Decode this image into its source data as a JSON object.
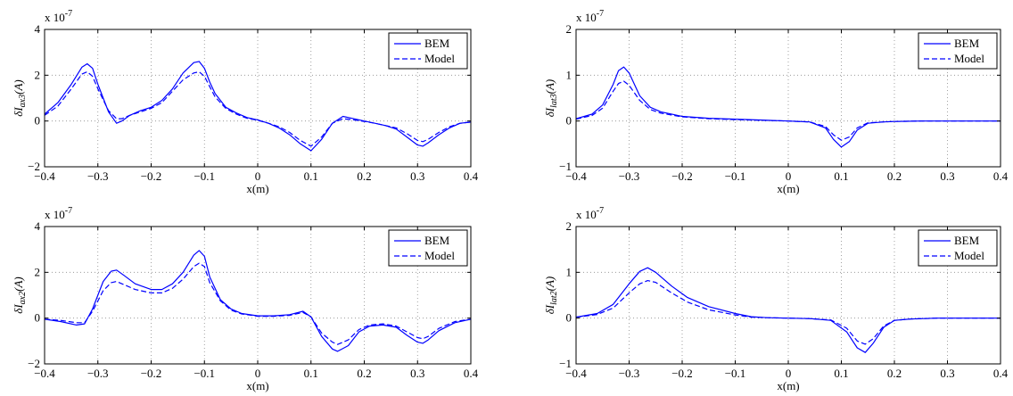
{
  "chart_data": [
    {
      "type": "line",
      "xlabel": "x(m)",
      "ylabel": "δI_{ax3}(A)",
      "ylabel_main": "δI",
      "ylabel_sub": "ax3",
      "ylabel_unit": "(A)",
      "scale_label": "x 10",
      "scale_exponent": "-7",
      "xlim": [
        -0.4,
        0.4
      ],
      "ylim": [
        -2,
        4
      ],
      "xticks": [
        -0.4,
        -0.3,
        -0.2,
        -0.1,
        0,
        0.1,
        0.2,
        0.3,
        0.4
      ],
      "xtick_labels": [
        "−0.4",
        "−0.3",
        "−0.2",
        "−0.1",
        "0",
        "0.1",
        "0.2",
        "0.3",
        "0.4"
      ],
      "yticks": [
        -2,
        0,
        2,
        4
      ],
      "ytick_labels": [
        "−2",
        "0",
        "2",
        "4"
      ],
      "grid": true,
      "legend_position": "top-right",
      "x": [
        -0.4,
        -0.375,
        -0.35,
        -0.33,
        -0.32,
        -0.31,
        -0.3,
        -0.28,
        -0.265,
        -0.255,
        -0.24,
        -0.22,
        -0.2,
        -0.18,
        -0.16,
        -0.14,
        -0.12,
        -0.11,
        -0.1,
        -0.09,
        -0.08,
        -0.06,
        -0.04,
        -0.02,
        0,
        0.02,
        0.04,
        0.06,
        0.08,
        0.1,
        0.12,
        0.14,
        0.16,
        0.18,
        0.2,
        0.22,
        0.24,
        0.26,
        0.28,
        0.3,
        0.31,
        0.32,
        0.34,
        0.36,
        0.38,
        0.4
      ],
      "series": [
        {
          "name": "BEM",
          "style": "solid",
          "values": [
            0.3,
            0.8,
            1.6,
            2.35,
            2.5,
            2.3,
            1.6,
            0.4,
            -0.1,
            0.0,
            0.25,
            0.45,
            0.6,
            0.9,
            1.4,
            2.1,
            2.55,
            2.6,
            2.3,
            1.7,
            1.2,
            0.6,
            0.35,
            0.15,
            0.05,
            -0.1,
            -0.3,
            -0.6,
            -1.0,
            -1.3,
            -0.8,
            -0.1,
            0.2,
            0.1,
            0.0,
            -0.1,
            -0.2,
            -0.35,
            -0.7,
            -1.05,
            -1.1,
            -0.95,
            -0.6,
            -0.3,
            -0.1,
            -0.05
          ]
        },
        {
          "name": "Model",
          "style": "dashed",
          "values": [
            0.25,
            0.65,
            1.4,
            2.05,
            2.15,
            1.95,
            1.4,
            0.45,
            0.1,
            0.1,
            0.25,
            0.4,
            0.55,
            0.8,
            1.3,
            1.8,
            2.1,
            2.15,
            1.95,
            1.5,
            1.05,
            0.55,
            0.3,
            0.12,
            0.03,
            -0.1,
            -0.25,
            -0.5,
            -0.85,
            -1.1,
            -0.7,
            -0.1,
            0.1,
            0.05,
            -0.02,
            -0.1,
            -0.2,
            -0.3,
            -0.55,
            -0.85,
            -0.9,
            -0.8,
            -0.5,
            -0.25,
            -0.1,
            -0.05
          ]
        }
      ]
    },
    {
      "type": "line",
      "xlabel": "x(m)",
      "ylabel": "δI_{lat3}(A)",
      "ylabel_main": "δI",
      "ylabel_sub": "lat3",
      "ylabel_unit": "(A)",
      "scale_label": "x 10",
      "scale_exponent": "-7",
      "xlim": [
        -0.4,
        0.4
      ],
      "ylim": [
        -1,
        2
      ],
      "xticks": [
        -0.4,
        -0.3,
        -0.2,
        -0.1,
        0,
        0.1,
        0.2,
        0.3,
        0.4
      ],
      "xtick_labels": [
        "−0.4",
        "−0.3",
        "−0.2",
        "−0.1",
        "0",
        "0.1",
        "0.2",
        "0.3",
        "0.4"
      ],
      "yticks": [
        -1,
        0,
        1,
        2
      ],
      "ytick_labels": [
        "−1",
        "0",
        "1",
        "2"
      ],
      "grid": true,
      "legend_position": "top-right",
      "x": [
        -0.4,
        -0.37,
        -0.35,
        -0.33,
        -0.32,
        -0.31,
        -0.3,
        -0.28,
        -0.26,
        -0.24,
        -0.2,
        -0.15,
        -0.1,
        -0.05,
        0,
        0.04,
        0.07,
        0.085,
        0.1,
        0.115,
        0.13,
        0.15,
        0.18,
        0.2,
        0.25,
        0.3,
        0.35,
        0.4
      ],
      "series": [
        {
          "name": "BEM",
          "style": "solid",
          "values": [
            0.05,
            0.15,
            0.35,
            0.8,
            1.1,
            1.18,
            1.05,
            0.55,
            0.3,
            0.2,
            0.1,
            0.06,
            0.04,
            0.02,
            0.0,
            -0.02,
            -0.15,
            -0.4,
            -0.57,
            -0.45,
            -0.2,
            -0.05,
            -0.02,
            -0.01,
            0.0,
            0.0,
            0.0,
            0.0
          ]
        },
        {
          "name": "Model",
          "style": "dashed",
          "values": [
            0.04,
            0.12,
            0.28,
            0.65,
            0.82,
            0.87,
            0.78,
            0.45,
            0.25,
            0.17,
            0.09,
            0.05,
            0.03,
            0.015,
            0.0,
            -0.02,
            -0.12,
            -0.3,
            -0.42,
            -0.35,
            -0.15,
            -0.04,
            -0.02,
            -0.01,
            0.0,
            0.0,
            0.0,
            0.0
          ]
        }
      ]
    },
    {
      "type": "line",
      "xlabel": "x(m)",
      "ylabel": "δI_{ax2}(A)",
      "ylabel_main": "δI",
      "ylabel_sub": "ax2",
      "ylabel_unit": "(A)",
      "scale_label": "x 10",
      "scale_exponent": "-7",
      "xlim": [
        -0.4,
        0.4
      ],
      "ylim": [
        -2,
        4
      ],
      "xticks": [
        -0.4,
        -0.3,
        -0.2,
        -0.1,
        0,
        0.1,
        0.2,
        0.3,
        0.4
      ],
      "xtick_labels": [
        "−0.4",
        "−0.3",
        "−0.2",
        "−0.1",
        "0",
        "0.1",
        "0.2",
        "0.3",
        "0.4"
      ],
      "yticks": [
        -2,
        0,
        2,
        4
      ],
      "ytick_labels": [
        "−2",
        "0",
        "2",
        "4"
      ],
      "grid": true,
      "legend_position": "top-right",
      "x": [
        -0.4,
        -0.37,
        -0.34,
        -0.325,
        -0.31,
        -0.29,
        -0.275,
        -0.265,
        -0.25,
        -0.23,
        -0.2,
        -0.18,
        -0.16,
        -0.14,
        -0.12,
        -0.11,
        -0.1,
        -0.09,
        -0.07,
        -0.05,
        -0.03,
        0,
        0.03,
        0.06,
        0.085,
        0.1,
        0.12,
        0.14,
        0.15,
        0.17,
        0.19,
        0.21,
        0.235,
        0.26,
        0.28,
        0.3,
        0.31,
        0.32,
        0.34,
        0.37,
        0.4
      ],
      "series": [
        {
          "name": "BEM",
          "style": "solid",
          "values": [
            -0.05,
            -0.15,
            -0.3,
            -0.25,
            0.4,
            1.6,
            2.05,
            2.1,
            1.85,
            1.5,
            1.25,
            1.25,
            1.5,
            2.0,
            2.75,
            2.95,
            2.7,
            1.8,
            0.8,
            0.4,
            0.2,
            0.1,
            0.1,
            0.15,
            0.3,
            0.05,
            -0.8,
            -1.35,
            -1.45,
            -1.2,
            -0.6,
            -0.35,
            -0.3,
            -0.4,
            -0.75,
            -1.05,
            -1.1,
            -0.95,
            -0.55,
            -0.2,
            -0.05
          ]
        },
        {
          "name": "Model",
          "style": "dashed",
          "values": [
            -0.05,
            -0.1,
            -0.2,
            -0.2,
            0.3,
            1.2,
            1.55,
            1.6,
            1.45,
            1.25,
            1.1,
            1.1,
            1.3,
            1.7,
            2.25,
            2.4,
            2.25,
            1.55,
            0.75,
            0.35,
            0.18,
            0.08,
            0.08,
            0.12,
            0.25,
            0.05,
            -0.65,
            -1.05,
            -1.15,
            -0.95,
            -0.5,
            -0.3,
            -0.25,
            -0.35,
            -0.6,
            -0.85,
            -0.9,
            -0.8,
            -0.45,
            -0.15,
            -0.05
          ]
        }
      ]
    },
    {
      "type": "line",
      "xlabel": "x(m)",
      "ylabel": "δI_{lat2}(A)",
      "ylabel_main": "δI",
      "ylabel_sub": "lat2",
      "ylabel_unit": "(A)",
      "scale_label": "x 10",
      "scale_exponent": "-7",
      "xlim": [
        -0.4,
        0.4
      ],
      "ylim": [
        -1,
        2
      ],
      "xticks": [
        -0.4,
        -0.3,
        -0.2,
        -0.1,
        0,
        0.1,
        0.2,
        0.3,
        0.4
      ],
      "xtick_labels": [
        "−0.4",
        "−0.3",
        "−0.2",
        "−0.1",
        "0",
        "0.1",
        "0.2",
        "0.3",
        "0.4"
      ],
      "yticks": [
        -1,
        0,
        1,
        2
      ],
      "ytick_labels": [
        "−1",
        "0",
        "1",
        "2"
      ],
      "grid": true,
      "legend_position": "top-right",
      "x": [
        -0.4,
        -0.36,
        -0.33,
        -0.3,
        -0.28,
        -0.265,
        -0.25,
        -0.22,
        -0.19,
        -0.15,
        -0.1,
        -0.07,
        -0.04,
        0,
        0.04,
        0.08,
        0.11,
        0.13,
        0.145,
        0.16,
        0.18,
        0.2,
        0.23,
        0.28,
        0.34,
        0.4
      ],
      "series": [
        {
          "name": "BEM",
          "style": "solid",
          "values": [
            0.02,
            0.1,
            0.3,
            0.75,
            1.02,
            1.1,
            1.0,
            0.7,
            0.45,
            0.25,
            0.1,
            0.03,
            0.01,
            0.0,
            -0.01,
            -0.05,
            -0.3,
            -0.65,
            -0.75,
            -0.55,
            -0.2,
            -0.05,
            -0.02,
            0.0,
            0.0,
            0.0
          ]
        },
        {
          "name": "Model",
          "style": "dashed",
          "values": [
            0.02,
            0.08,
            0.22,
            0.55,
            0.75,
            0.82,
            0.78,
            0.55,
            0.35,
            0.18,
            0.07,
            0.02,
            0.01,
            0.0,
            -0.01,
            -0.04,
            -0.22,
            -0.5,
            -0.57,
            -0.45,
            -0.17,
            -0.05,
            -0.02,
            0.0,
            0.0,
            0.0
          ]
        }
      ]
    }
  ],
  "colors": {
    "line": "#0000ff",
    "axes": "#000000",
    "grid": "#8c8c8c",
    "background": "#ffffff"
  }
}
